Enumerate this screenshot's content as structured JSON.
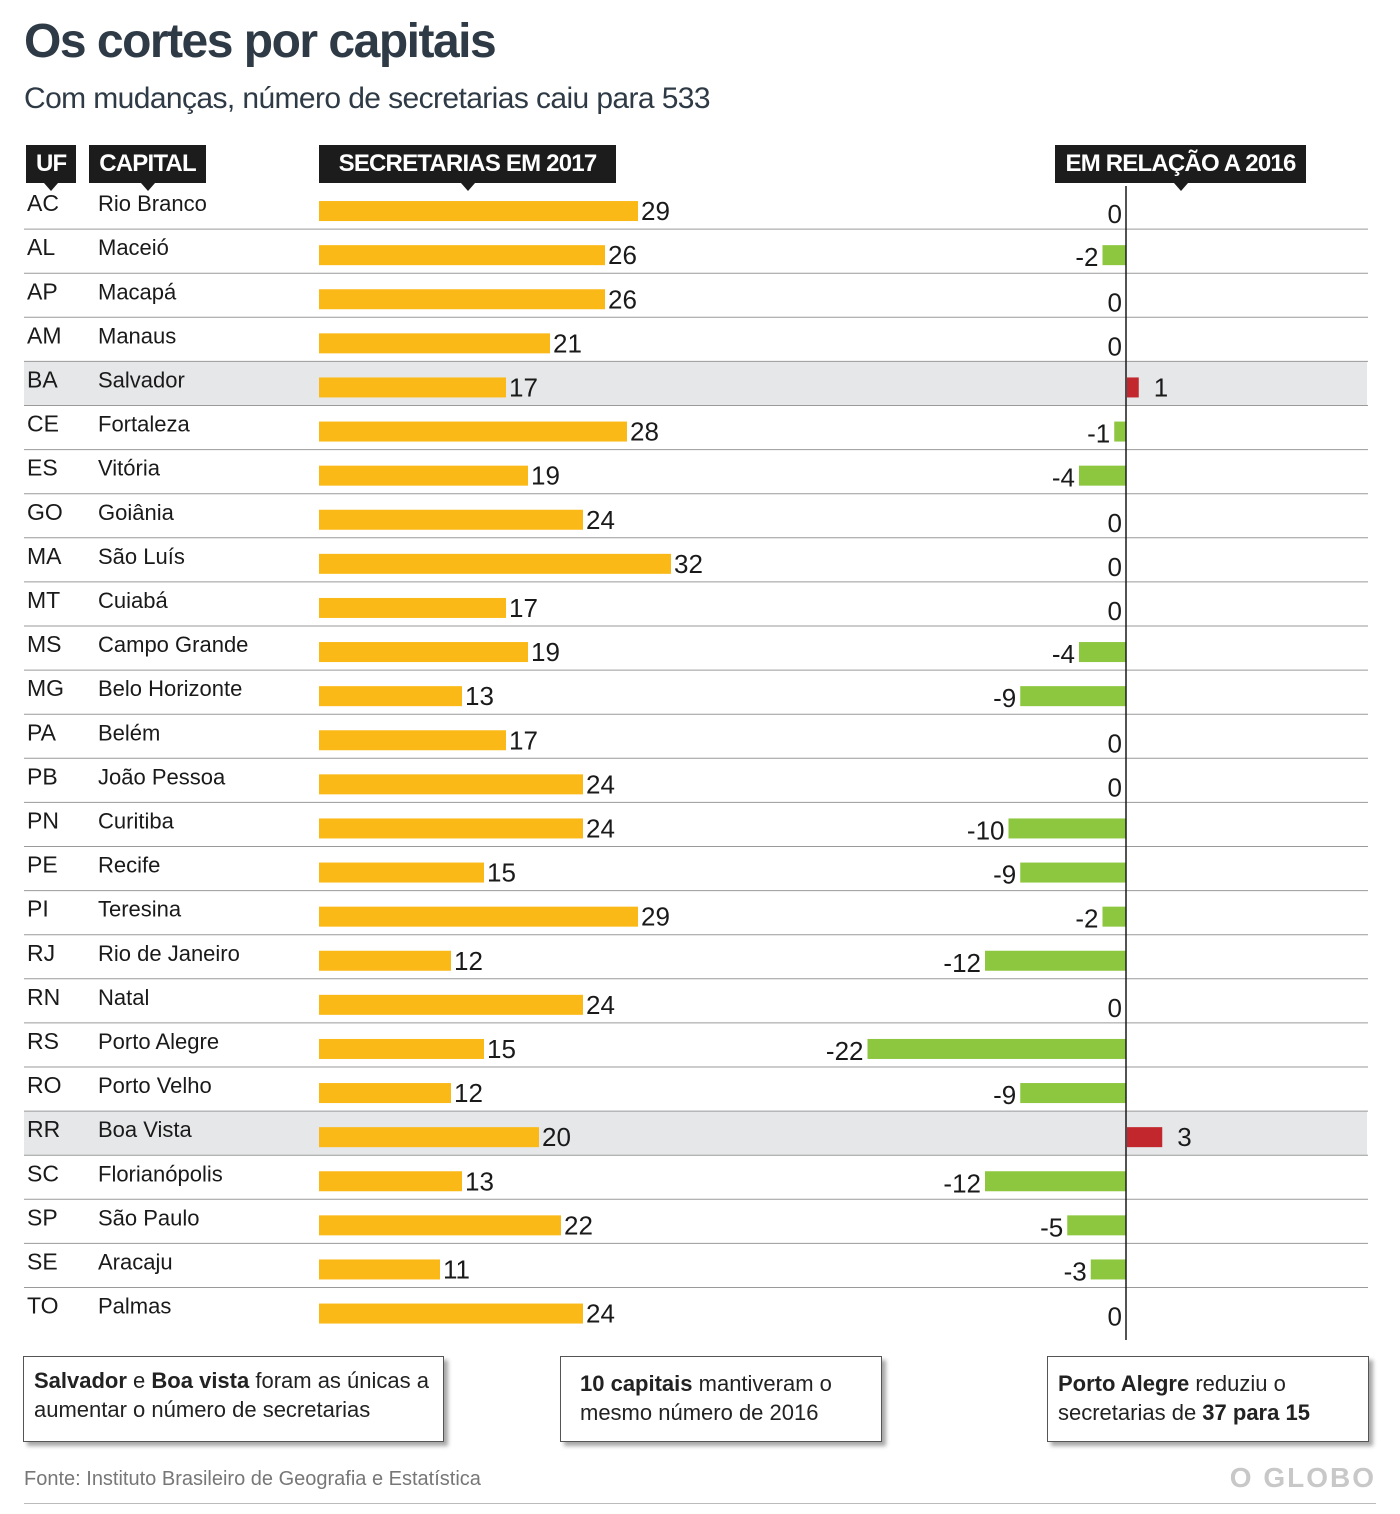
{
  "title": "Os cortes por capitais",
  "subtitle": "Com mudanças, número de secretarias caiu para 533",
  "headers": {
    "uf": "UF",
    "capital": "CAPITAL",
    "secretarias": "SECRETARIAS EM 2017",
    "relacao": "EM RELAÇÃO A 2016"
  },
  "colors": {
    "bar_2017": "#fbb917",
    "decrease": "#8dc63f",
    "increase": "#c1272d",
    "highlight_row": "#e6e7e8",
    "header_bg": "#1c1c1c"
  },
  "chart_data": {
    "type": "bar",
    "categories": [
      "AC",
      "AL",
      "AP",
      "AM",
      "BA",
      "CE",
      "ES",
      "GO",
      "MA",
      "MT",
      "MS",
      "MG",
      "PA",
      "PB",
      "PN",
      "PE",
      "PI",
      "RJ",
      "RN",
      "RS",
      "RO",
      "RR",
      "SC",
      "SP",
      "SE",
      "TO"
    ],
    "capitals": [
      "Rio Branco",
      "Maceió",
      "Macapá",
      "Manaus",
      "Salvador",
      "Fortaleza",
      "Vitória",
      "Goiânia",
      "São Luís",
      "Cuiabá",
      "Campo Grande",
      "Belo Horizonte",
      "Belém",
      "João Pessoa",
      "Curitiba",
      "Recife",
      "Teresina",
      "Rio de Janeiro",
      "Natal",
      "Porto Alegre",
      "Porto Velho",
      "Boa Vista",
      "Florianópolis",
      "São Paulo",
      "Aracaju",
      "Palmas"
    ],
    "series": [
      {
        "name": "SECRETARIAS EM 2017",
        "values": [
          29,
          26,
          26,
          21,
          17,
          28,
          19,
          24,
          32,
          17,
          19,
          13,
          17,
          24,
          24,
          15,
          29,
          12,
          24,
          15,
          12,
          20,
          13,
          22,
          11,
          24
        ]
      },
      {
        "name": "EM RELAÇÃO A 2016",
        "values": [
          0,
          -2,
          0,
          0,
          1,
          -1,
          -4,
          0,
          0,
          0,
          -4,
          -9,
          0,
          0,
          -10,
          -9,
          -2,
          -12,
          0,
          -22,
          -9,
          3,
          -12,
          -5,
          -3,
          0
        ]
      }
    ],
    "highlighted": [
      "BA",
      "RR"
    ]
  },
  "notes": [
    {
      "b1": "Salvador",
      "t1": " e ",
      "b2": "Boa vista",
      "t2": " foram as únicas a aumentar o número de secretarias",
      "b3": "",
      "t3": ""
    },
    {
      "b1": "10 capitais",
      "t1": " mantiveram o mesmo número de 2016",
      "b2": "",
      "t2": "",
      "b3": "",
      "t3": ""
    },
    {
      "b1": "Porto Alegre",
      "t1": " reduziu o secretarias de ",
      "b2": "37 para 15",
      "t2": "",
      "b3": "",
      "t3": ""
    }
  ],
  "source": "Fonte: Instituto Brasileiro de Geografia e Estatística",
  "brand": "O GLOBO"
}
